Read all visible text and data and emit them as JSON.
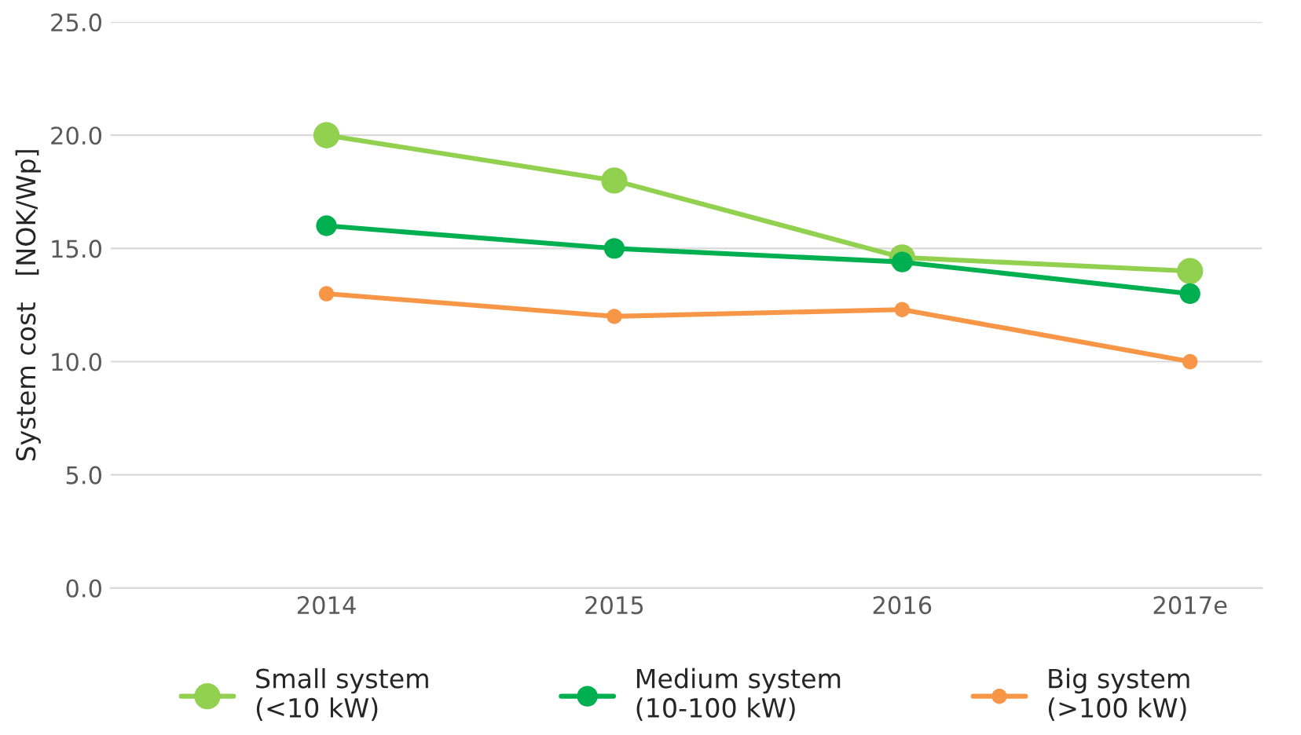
{
  "chart_data": {
    "type": "line",
    "ylabel": "System cost   [NOK/Wp]",
    "categories": [
      "2014",
      "2015",
      "2016",
      "2017e"
    ],
    "series": [
      {
        "name": "Small system\n(<10 kW)",
        "color": "#92d050",
        "values": [
          20.0,
          18.0,
          14.6,
          14.0
        ]
      },
      {
        "name": "Medium system\n(10-100 kW)",
        "color": "#00b050",
        "values": [
          16.0,
          15.0,
          14.4,
          13.0
        ]
      },
      {
        "name": "Big system\n(>100 kW)",
        "color": "#f79646",
        "values": [
          13.0,
          12.0,
          12.3,
          10.0
        ]
      }
    ],
    "ylim": [
      0,
      25
    ],
    "yticks": [
      {
        "value": 0,
        "label": "0.0"
      },
      {
        "value": 5,
        "label": "5.0"
      },
      {
        "value": 10,
        "label": "10.0"
      },
      {
        "value": 15,
        "label": "15.0"
      },
      {
        "value": 20,
        "label": "20.0"
      },
      {
        "value": 25,
        "label": "25.0"
      }
    ],
    "grid": "y",
    "legend": "bottom",
    "marker": "circle",
    "line_style": "solid"
  }
}
